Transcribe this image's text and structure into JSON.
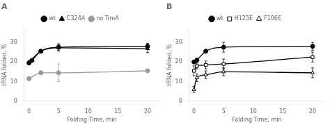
{
  "chart_data": [
    {
      "type": "line",
      "title": "A",
      "xlabel": "Folding Time, min",
      "ylabel": "tRNA folded, %",
      "xlim": [
        -0.8,
        22
      ],
      "ylim": [
        0,
        37
      ],
      "xticks": [
        0,
        5,
        10,
        15,
        20
      ],
      "yticks": [
        0,
        10,
        20,
        30
      ],
      "grid": false,
      "legend": "top",
      "series": [
        {
          "name": "wt",
          "color": "#000000",
          "marker": "circle",
          "x": [
            0,
            0.5,
            2,
            5,
            20
          ],
          "values": [
            19.5,
            20.8,
            25.5,
            27.5,
            28.0
          ],
          "yerr": [
            0.5,
            0.5,
            0.8,
            1.8,
            1.5
          ]
        },
        {
          "name": "C324A",
          "color": "#000000",
          "marker": "triangle",
          "x": [
            0,
            2,
            5,
            20
          ],
          "values": [
            20.0,
            25.5,
            27.2,
            26.8
          ],
          "yerr": [
            0.5,
            0.8,
            1.5,
            2.0
          ]
        },
        {
          "name": "no TrmA",
          "color": "#999999",
          "marker": "circle",
          "x": [
            0,
            2,
            5,
            20
          ],
          "values": [
            11.5,
            14.5,
            14.5,
            15.5
          ],
          "yerr": [
            1.0,
            0.5,
            4.5,
            0.5
          ]
        }
      ]
    },
    {
      "type": "line",
      "title": "B",
      "xlabel": "Folding Time, min",
      "ylabel": "tRNA folded, %",
      "xlim": [
        -0.8,
        22
      ],
      "ylim": [
        0,
        37
      ],
      "xticks": [
        0,
        5,
        10,
        15,
        20
      ],
      "yticks": [
        0,
        10,
        20,
        30
      ],
      "grid": false,
      "legend": "top",
      "series": [
        {
          "name": "wt",
          "color": "#000000",
          "marker": "circle",
          "x": [
            0,
            0.5,
            2,
            5,
            20
          ],
          "values": [
            20.0,
            21.0,
            25.5,
            27.5,
            28.0
          ],
          "yerr": [
            0.5,
            0.5,
            0.8,
            2.5,
            2.0
          ]
        },
        {
          "name": "H125E",
          "color": "#000000",
          "marker": "square-open",
          "x": [
            0,
            0.5,
            2,
            5,
            20
          ],
          "values": [
            15.5,
            18.0,
            18.5,
            19.0,
            22.5
          ],
          "yerr": [
            2.5,
            1.5,
            2.0,
            2.5,
            2.5
          ]
        },
        {
          "name": "F106E",
          "color": "#000000",
          "marker": "triangle-open",
          "x": [
            0,
            0.5,
            2,
            5,
            20
          ],
          "values": [
            6.0,
            12.0,
            13.5,
            15.0,
            14.5
          ],
          "yerr": [
            1.5,
            2.0,
            2.0,
            2.0,
            2.5
          ]
        }
      ]
    }
  ]
}
